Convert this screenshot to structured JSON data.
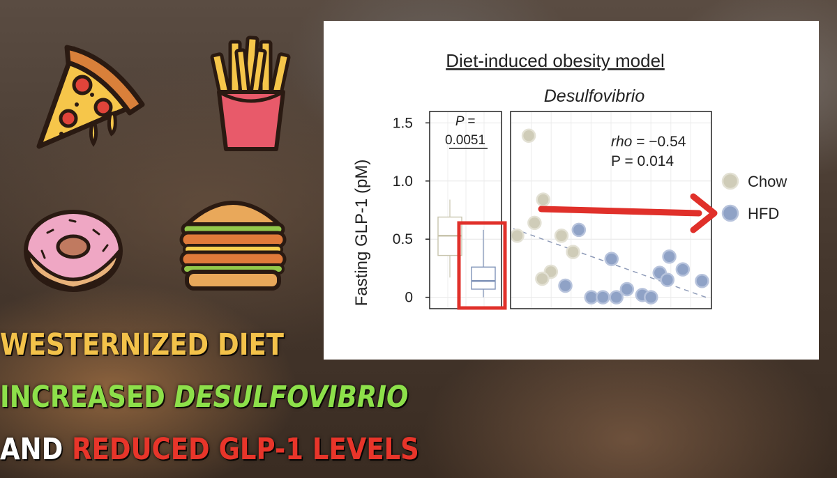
{
  "captions": {
    "line1": "WESTERNIZED DIET",
    "line2_prefix": "INCREASED ",
    "line2_em": "DESULFOVIBRIO",
    "line3_prefix": "AND ",
    "line3_red": "REDUCED GLP-1 LEVELS"
  },
  "icons": [
    "pizza-icon",
    "fries-icon",
    "donut-icon",
    "burger-icon",
    "red-arrow-icon"
  ],
  "colors": {
    "chow": "#cfccb8",
    "hfd": "#8fa2c6",
    "highlight": "#e0302a",
    "caption_yellow": "#f3c24a",
    "caption_green": "#8de04a",
    "caption_red": "#e8352a"
  },
  "chart_data": {
    "type": "scatter",
    "title": "Diet-induced obesity model",
    "subtitle": "Desulfovibrio",
    "ylabel": "Fasting GLP-1 (pM)",
    "ylim": [
      -0.08,
      1.58
    ],
    "yticks": [
      "0",
      "0.5",
      "1.0",
      "1.5"
    ],
    "ytick_values": [
      0,
      0.5,
      1.0,
      1.5
    ],
    "grid": true,
    "legend_position": "right",
    "box_panel": {
      "p_label": "P =",
      "p_value": "0.0051",
      "boxes": [
        {
          "series": "Chow",
          "min": 0.17,
          "q1": 0.36,
          "median": 0.53,
          "q3": 0.69,
          "max": 0.84
        },
        {
          "series": "HFD",
          "min": 0.0,
          "q1": 0.07,
          "median": 0.14,
          "q3": 0.26,
          "max": 0.58
        }
      ]
    },
    "annotation_rho_label": "rho",
    "annotation_rho_value": " = −0.54",
    "annotation_p": "P = 0.014",
    "xlim": [
      0,
      1
    ],
    "trend_line": {
      "x": [
        0,
        1
      ],
      "y": [
        0.59,
        0.0
      ]
    },
    "series": [
      {
        "name": "Chow",
        "points": [
          {
            "x": 0.08,
            "y": 1.39
          },
          {
            "x": 0.155,
            "y": 0.84
          },
          {
            "x": 0.11,
            "y": 0.64
          },
          {
            "x": 0.02,
            "y": 0.53
          },
          {
            "x": 0.25,
            "y": 0.53
          },
          {
            "x": 0.31,
            "y": 0.39
          },
          {
            "x": 0.195,
            "y": 0.22
          },
          {
            "x": 0.15,
            "y": 0.16
          }
        ]
      },
      {
        "name": "HFD",
        "points": [
          {
            "x": 0.34,
            "y": 0.58
          },
          {
            "x": 0.51,
            "y": 0.33
          },
          {
            "x": 0.81,
            "y": 0.35
          },
          {
            "x": 0.88,
            "y": 0.24
          },
          {
            "x": 0.76,
            "y": 0.21
          },
          {
            "x": 0.8,
            "y": 0.15
          },
          {
            "x": 0.98,
            "y": 0.14
          },
          {
            "x": 0.27,
            "y": 0.1
          },
          {
            "x": 0.59,
            "y": 0.07
          },
          {
            "x": 0.67,
            "y": 0.02
          },
          {
            "x": 0.405,
            "y": 0.0
          },
          {
            "x": 0.465,
            "y": 0.0
          },
          {
            "x": 0.535,
            "y": 0.0
          },
          {
            "x": 0.715,
            "y": 0.0
          }
        ]
      }
    ]
  }
}
